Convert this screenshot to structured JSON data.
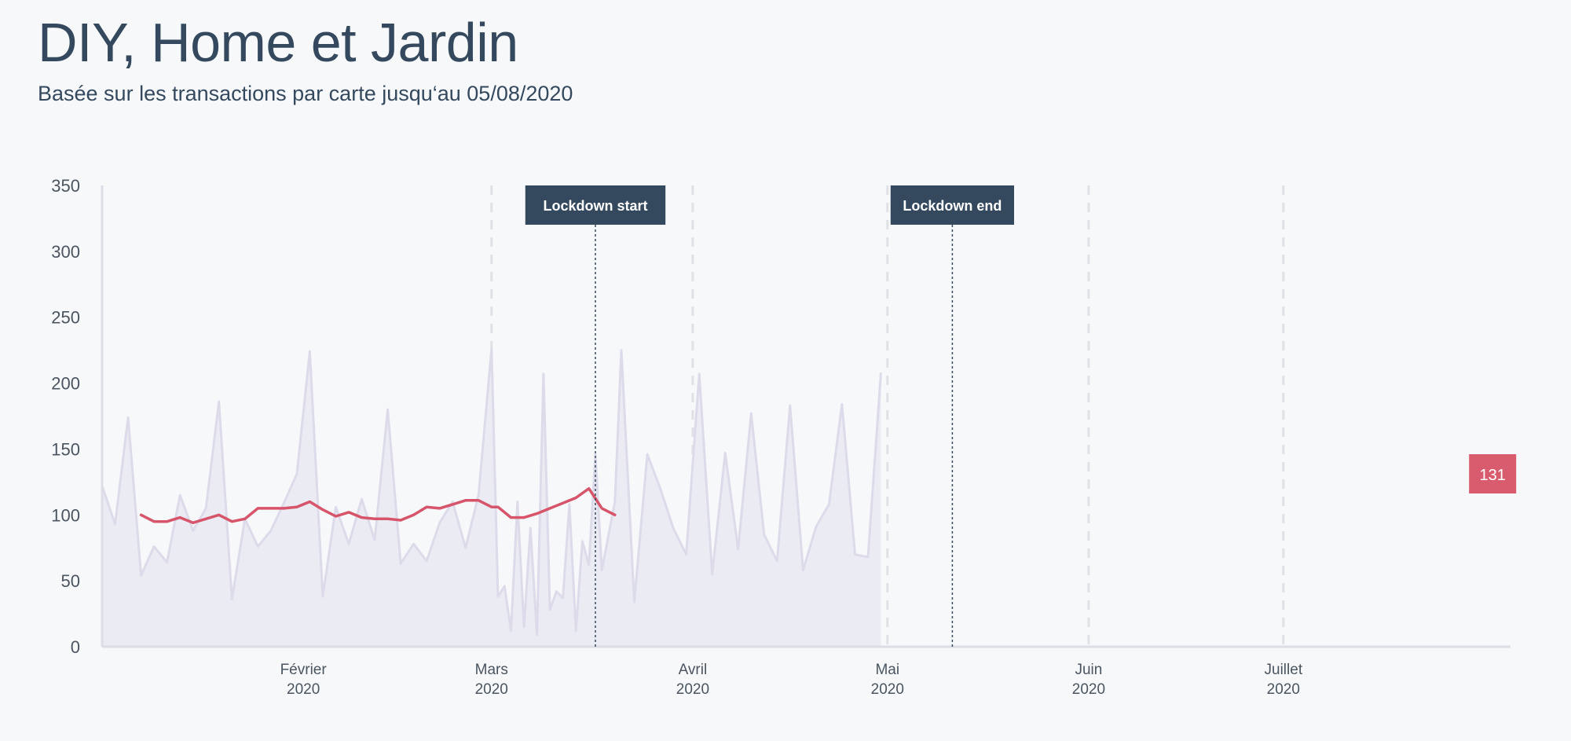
{
  "header": {
    "title": "DIY, Home et Jardin",
    "subtitle": "Basée sur les transactions par carte jusqu‘au 05/08/2020"
  },
  "colors": {
    "background": "#f7f8fa",
    "daily_line": "#dddbea",
    "daily_fill": "#ebebf3",
    "average_line": "#d6556a",
    "annotation_bg": "#34495e",
    "end_badge": "#d95c6e",
    "gridline": "#dfe1e6"
  },
  "chart_data": {
    "type": "area",
    "title": "DIY, Home et Jardin",
    "subtitle": "Basée sur les transactions par carte jusqu‘au 05/08/2020",
    "xlim": [
      "2020-01-01",
      "2020-08-05"
    ],
    "ylim": [
      0,
      350
    ],
    "y_ticks": [
      0,
      50,
      100,
      150,
      200,
      250,
      300,
      350
    ],
    "x_ticks": [
      {
        "date": "2020-02-01",
        "month": "Février",
        "year": "2020",
        "gridline": false
      },
      {
        "date": "2020-03-01",
        "month": "Mars",
        "year": "2020",
        "gridline": true
      },
      {
        "date": "2020-04-01",
        "month": "Avril",
        "year": "2020",
        "gridline": true
      },
      {
        "date": "2020-05-01",
        "month": "Mai",
        "year": "2020",
        "gridline": true
      },
      {
        "date": "2020-06-01",
        "month": "Juin",
        "year": "2020",
        "gridline": true
      },
      {
        "date": "2020-07-01",
        "month": "Juillet",
        "year": "2020",
        "gridline": true
      }
    ],
    "annotations": [
      {
        "date": "2020-03-17",
        "label": "Lockdown start"
      },
      {
        "date": "2020-05-11",
        "label": "Lockdown end"
      }
    ],
    "end_label": {
      "date": "2020-08-02",
      "value": 131,
      "text": "131"
    },
    "grid": false,
    "legend": "none",
    "series": [
      {
        "role": "daily",
        "style": "area",
        "points": [
          [
            "2020-01-01",
            122
          ],
          [
            "2020-01-03",
            93
          ],
          [
            "2020-01-05",
            174
          ],
          [
            "2020-01-07",
            54
          ],
          [
            "2020-01-09",
            76
          ],
          [
            "2020-01-11",
            64
          ],
          [
            "2020-01-13",
            115
          ],
          [
            "2020-01-15",
            88
          ],
          [
            "2020-01-17",
            105
          ],
          [
            "2020-01-19",
            186
          ],
          [
            "2020-01-21",
            36
          ],
          [
            "2020-01-23",
            97
          ],
          [
            "2020-01-25",
            76
          ],
          [
            "2020-01-27",
            88
          ],
          [
            "2020-01-29",
            109
          ],
          [
            "2020-01-31",
            131
          ],
          [
            "2020-02-02",
            224
          ],
          [
            "2020-02-04",
            38
          ],
          [
            "2020-02-06",
            106
          ],
          [
            "2020-02-08",
            78
          ],
          [
            "2020-02-10",
            112
          ],
          [
            "2020-02-12",
            81
          ],
          [
            "2020-02-14",
            180
          ],
          [
            "2020-02-16",
            63
          ],
          [
            "2020-02-18",
            78
          ],
          [
            "2020-02-20",
            65
          ],
          [
            "2020-02-22",
            94
          ],
          [
            "2020-02-24",
            110
          ],
          [
            "2020-02-26",
            75
          ],
          [
            "2020-02-28",
            115
          ],
          [
            "2020-03-01",
            226
          ],
          [
            "2020-03-03",
            46
          ],
          [
            "2020-03-05",
            110
          ],
          [
            "2020-03-07",
            90
          ],
          [
            "2020-03-09",
            207
          ],
          [
            "2020-03-11",
            42
          ],
          [
            "2020-03-13",
            108
          ],
          [
            "2020-03-15",
            80
          ],
          [
            "2020-03-17",
            146
          ],
          [
            "2020-03-19",
            84
          ],
          [
            "2020-03-21",
            225
          ],
          [
            "2020-03-23",
            34
          ],
          [
            "2020-03-25",
            146
          ],
          [
            "2020-03-27",
            120
          ],
          [
            "2020-03-29",
            90
          ],
          [
            "2020-03-31",
            70
          ],
          [
            "2020-04-02",
            207
          ],
          [
            "2020-04-04",
            55
          ],
          [
            "2020-04-06",
            147
          ],
          [
            "2020-04-08",
            74
          ],
          [
            "2020-04-10",
            177
          ],
          [
            "2020-04-12",
            85
          ],
          [
            "2020-04-14",
            65
          ],
          [
            "2020-04-16",
            183
          ],
          [
            "2020-04-18",
            58
          ],
          [
            "2020-04-20",
            91
          ],
          [
            "2020-04-22",
            108
          ],
          [
            "2020-04-24",
            184
          ],
          [
            "2020-04-26",
            70
          ],
          [
            "2020-04-28",
            68
          ],
          [
            "2020-04-30",
            208
          ],
          [
            "2020-03-02",
            38
          ],
          [
            "2020-03-04",
            12
          ],
          [
            "2020-03-06",
            15
          ],
          [
            "2020-03-08",
            9
          ],
          [
            "2020-03-10",
            28
          ],
          [
            "2020-03-12",
            37
          ],
          [
            "2020-03-14",
            12
          ],
          [
            "2020-03-16",
            62
          ],
          [
            "2020-03-18",
            58
          ],
          [
            "2020-03-20",
            110
          ]
        ]
      },
      {
        "role": "moving_average",
        "style": "line",
        "points": [
          [
            "2020-01-07",
            100
          ],
          [
            "2020-01-09",
            95
          ],
          [
            "2020-01-11",
            95
          ],
          [
            "2020-01-13",
            98
          ],
          [
            "2020-01-15",
            94
          ],
          [
            "2020-01-17",
            97
          ],
          [
            "2020-01-19",
            100
          ],
          [
            "2020-01-21",
            95
          ],
          [
            "2020-01-23",
            97
          ],
          [
            "2020-01-25",
            105
          ],
          [
            "2020-01-27",
            105
          ],
          [
            "2020-01-29",
            105
          ],
          [
            "2020-01-31",
            106
          ],
          [
            "2020-02-02",
            110
          ],
          [
            "2020-02-04",
            104
          ],
          [
            "2020-02-06",
            99
          ],
          [
            "2020-02-08",
            102
          ],
          [
            "2020-02-10",
            98
          ],
          [
            "2020-02-12",
            97
          ],
          [
            "2020-02-14",
            97
          ],
          [
            "2020-02-16",
            96
          ],
          [
            "2020-02-18",
            100
          ],
          [
            "2020-02-20",
            106
          ],
          [
            "2020-02-22",
            105
          ],
          [
            "2020-02-24",
            108
          ],
          [
            "2020-02-26",
            111
          ],
          [
            "2020-02-28",
            111
          ],
          [
            "2020-03-01",
            106
          ],
          [
            "2020-03-02",
            106
          ],
          [
            "2020-03-04",
            98
          ],
          [
            "2020-03-06",
            98
          ],
          [
            "2020-03-08",
            101
          ],
          [
            "2020-03-10",
            105
          ],
          [
            "2020-03-12",
            109
          ],
          [
            "2020-03-14",
            113
          ],
          [
            "2020-03-16",
            120
          ],
          [
            "2020-03-18",
            105
          ],
          [
            "2020-03-20",
            100
          ]
        ]
      }
    ]
  }
}
